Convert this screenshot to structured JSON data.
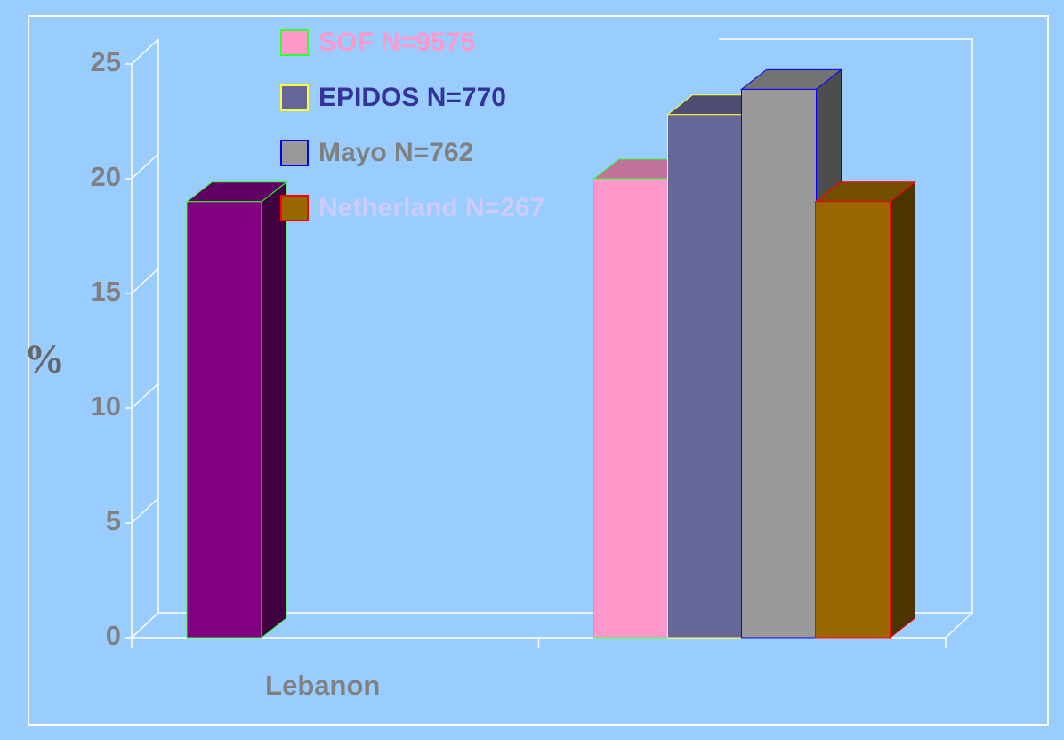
{
  "chart_data": {
    "type": "bar3d",
    "y_label": "%",
    "categories": [
      "Lebanon",
      null
    ],
    "series": [
      {
        "color": "#800080",
        "edgecolor": "#33ff33",
        "values": [
          19,
          null
        ]
      },
      {
        "name": "SOF N=9575",
        "color": "#ff99cc",
        "edgecolor": "#33ff33",
        "label_color": "#ff99cc",
        "values": [
          null,
          20
        ]
      },
      {
        "name": "EPIDOS N=770",
        "color": "#666699",
        "edgecolor": "#ffff33",
        "label_color": "#333399",
        "values": [
          null,
          22.8
        ]
      },
      {
        "name": "Mayo N=762",
        "color": "#999999",
        "edgecolor": "#0000ff",
        "label_color": "#808080",
        "values": [
          null,
          23.9
        ]
      },
      {
        "name": "Netherland N=267",
        "color": "#996600",
        "edgecolor": "#ff0000",
        "label_color": "#ccccff",
        "values": [
          null,
          19
        ]
      }
    ],
    "ylim": [
      0,
      25
    ],
    "yticks": [
      0,
      5,
      10,
      15,
      20,
      25
    ]
  }
}
